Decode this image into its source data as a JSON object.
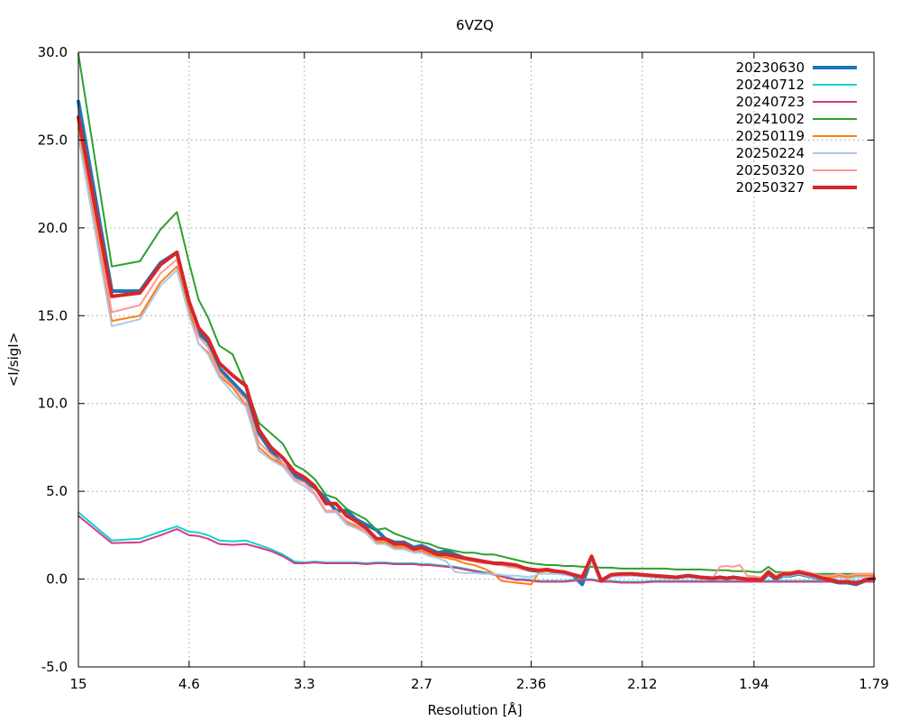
{
  "chart_data": {
    "type": "line",
    "title": "6VZQ",
    "xlabel": "Resolution [Å]",
    "ylabel": "<I/sigI>",
    "x_scale": "1/d^2",
    "xlim": [
      15,
      1.79
    ],
    "ylim": [
      -5,
      30
    ],
    "grid": true,
    "legend_position": "top-right",
    "x_ticks": [
      15,
      4.6,
      3.3,
      2.7,
      2.36,
      2.12,
      1.94,
      1.79
    ],
    "x_tick_labels": [
      "15",
      "4.6",
      "3.3",
      "2.7",
      "2.36",
      "2.12",
      "1.94",
      "1.79"
    ],
    "y_ticks": [
      -5,
      0,
      5,
      10,
      15,
      20,
      25,
      30
    ],
    "y_tick_labels": [
      "-5.0",
      "0.0",
      "5.0",
      "10.0",
      "15.0",
      "20.0",
      "25.0",
      "30.0"
    ],
    "x": [
      15.0,
      7.59,
      5.95,
      5.26,
      4.85,
      4.6,
      4.43,
      4.28,
      4.12,
      3.95,
      3.8,
      3.67,
      3.56,
      3.46,
      3.37,
      3.3,
      3.23,
      3.16,
      3.1,
      3.04,
      2.99,
      2.94,
      2.89,
      2.85,
      2.81,
      2.77,
      2.73,
      2.7,
      2.67,
      2.64,
      2.61,
      2.58,
      2.55,
      2.52,
      2.49,
      2.46,
      2.44,
      2.42,
      2.4,
      2.38,
      2.36,
      2.34,
      2.32,
      2.3,
      2.28,
      2.26,
      2.24,
      2.22,
      2.2,
      2.18,
      2.16,
      2.14,
      2.12,
      2.1,
      2.08,
      2.06,
      2.04,
      2.02,
      2.0,
      1.99,
      1.98,
      1.97,
      1.96,
      1.95,
      1.94,
      1.93,
      1.92,
      1.91,
      1.9,
      1.89,
      1.88,
      1.87,
      1.86,
      1.85,
      1.84,
      1.83,
      1.82,
      1.81,
      1.8,
      1.79
    ],
    "series": [
      {
        "name": "20230630",
        "color": "#1f77b4",
        "width": 4,
        "values": [
          27.2,
          16.4,
          16.4,
          18.0,
          18.6,
          15.5,
          14.0,
          13.5,
          12.0,
          11.2,
          10.4,
          8.3,
          7.3,
          6.5,
          5.9,
          5.6,
          5.2,
          4.6,
          3.9,
          3.9,
          3.4,
          3.1,
          2.8,
          2.3,
          2.1,
          2.1,
          1.8,
          1.9,
          1.7,
          1.5,
          1.6,
          1.4,
          1.2,
          1.1,
          1.0,
          0.9,
          0.85,
          0.8,
          0.75,
          0.6,
          0.5,
          0.45,
          0.5,
          0.4,
          0.35,
          0.2,
          -0.3,
          1.2,
          -0.1,
          0.2,
          0.25,
          0.3,
          0.25,
          0.2,
          0.15,
          0.1,
          0.2,
          0.1,
          0.05,
          0.1,
          0.05,
          0.1,
          0.05,
          0.0,
          -0.05,
          -0.1,
          0.3,
          0.0,
          0.2,
          0.2,
          0.3,
          0.2,
          0.1,
          0.0,
          -0.1,
          -0.2,
          -0.2,
          -0.3,
          -0.1,
          0.0
        ]
      },
      {
        "name": "20240712",
        "color": "#17d0d0",
        "width": 2,
        "values": [
          3.8,
          2.2,
          2.3,
          2.7,
          3.0,
          2.7,
          2.65,
          2.5,
          2.2,
          2.15,
          2.2,
          1.95,
          1.7,
          1.4,
          1.0,
          0.95,
          1.0,
          0.95,
          0.95,
          0.95,
          0.95,
          0.9,
          0.95,
          0.95,
          0.9,
          0.9,
          0.9,
          0.85,
          0.85,
          0.8,
          0.75,
          0.7,
          0.6,
          0.5,
          0.4,
          0.3,
          0.2,
          0.1,
          0.0,
          0.0,
          -0.05,
          -0.1,
          -0.1,
          -0.1,
          -0.1,
          -0.05,
          0.0,
          0.0,
          -0.1,
          -0.1,
          -0.15,
          -0.15,
          -0.15,
          -0.1,
          -0.1,
          -0.1,
          -0.1,
          -0.1,
          -0.1,
          -0.1,
          -0.1,
          -0.1,
          -0.1,
          -0.1,
          -0.1,
          -0.1,
          -0.1,
          -0.1,
          -0.1,
          -0.1,
          -0.1,
          -0.1,
          -0.1,
          -0.1,
          -0.1,
          -0.1,
          -0.1,
          -0.1,
          -0.1,
          -0.1
        ]
      },
      {
        "name": "20240723",
        "color": "#d03c87",
        "width": 2,
        "values": [
          3.6,
          2.05,
          2.1,
          2.5,
          2.85,
          2.5,
          2.45,
          2.3,
          2.0,
          1.95,
          2.0,
          1.8,
          1.6,
          1.3,
          0.9,
          0.9,
          0.95,
          0.9,
          0.9,
          0.9,
          0.9,
          0.85,
          0.9,
          0.9,
          0.85,
          0.85,
          0.85,
          0.8,
          0.8,
          0.75,
          0.7,
          0.65,
          0.55,
          0.45,
          0.35,
          0.25,
          0.15,
          0.05,
          -0.05,
          -0.05,
          -0.1,
          -0.15,
          -0.15,
          -0.15,
          -0.15,
          -0.1,
          -0.05,
          -0.05,
          -0.15,
          -0.15,
          -0.2,
          -0.2,
          -0.2,
          -0.15,
          -0.15,
          -0.15,
          -0.15,
          -0.15,
          -0.15,
          -0.15,
          -0.15,
          -0.15,
          -0.15,
          -0.15,
          -0.15,
          -0.15,
          -0.15,
          -0.15,
          -0.15,
          -0.15,
          -0.15,
          -0.15,
          -0.15,
          -0.15,
          -0.15,
          -0.15,
          -0.15,
          -0.15,
          -0.15,
          -0.15
        ]
      },
      {
        "name": "20241002",
        "color": "#2ca02c",
        "width": 2,
        "values": [
          29.9,
          17.8,
          18.1,
          19.9,
          20.9,
          18.0,
          15.9,
          14.9,
          13.3,
          12.8,
          11.0,
          8.9,
          8.3,
          7.7,
          6.5,
          6.2,
          5.7,
          4.8,
          4.6,
          4.0,
          3.7,
          3.4,
          2.8,
          2.9,
          2.6,
          2.4,
          2.2,
          2.1,
          2.0,
          1.8,
          1.7,
          1.6,
          1.5,
          1.5,
          1.4,
          1.4,
          1.3,
          1.2,
          1.1,
          1.0,
          0.9,
          0.85,
          0.8,
          0.8,
          0.75,
          0.75,
          0.7,
          0.7,
          0.65,
          0.65,
          0.6,
          0.6,
          0.6,
          0.6,
          0.6,
          0.55,
          0.55,
          0.55,
          0.5,
          0.5,
          0.5,
          0.45,
          0.45,
          0.45,
          0.4,
          0.4,
          0.7,
          0.4,
          0.4,
          0.4,
          0.5,
          0.4,
          0.3,
          0.3,
          0.3,
          0.3,
          0.3,
          0.3,
          0.3,
          0.3
        ]
      },
      {
        "name": "20250119",
        "color": "#ff7f0e",
        "width": 2,
        "values": [
          25.7,
          14.7,
          15.0,
          16.9,
          17.8,
          15.2,
          13.4,
          12.9,
          11.6,
          10.9,
          9.9,
          7.5,
          6.9,
          6.5,
          5.6,
          5.3,
          4.8,
          3.8,
          3.8,
          3.2,
          3.0,
          2.6,
          2.1,
          2.1,
          1.8,
          1.8,
          1.5,
          1.6,
          1.4,
          1.3,
          1.2,
          1.1,
          0.9,
          0.8,
          0.6,
          0.3,
          -0.1,
          -0.15,
          -0.2,
          -0.25,
          -0.3,
          0.4,
          0.45,
          0.4,
          0.35,
          0.2,
          0.15,
          1.2,
          -0.1,
          0.2,
          0.2,
          0.25,
          0.2,
          0.15,
          0.1,
          0.1,
          0.15,
          0.1,
          0.05,
          0.1,
          0.05,
          0.1,
          0.05,
          0.0,
          0.0,
          -0.05,
          0.4,
          0.1,
          0.3,
          0.3,
          0.4,
          0.3,
          0.2,
          0.1,
          0.1,
          0.2,
          0.1,
          0.2,
          0.2,
          0.2
        ]
      },
      {
        "name": "20250224",
        "color": "#aec7e8",
        "width": 2,
        "values": [
          25.2,
          14.4,
          14.8,
          16.7,
          17.6,
          15.0,
          13.4,
          12.8,
          11.5,
          10.6,
          9.8,
          7.3,
          6.8,
          6.4,
          5.6,
          5.3,
          4.8,
          3.8,
          3.8,
          3.1,
          2.9,
          2.6,
          2.0,
          2.0,
          1.7,
          1.7,
          1.5,
          1.5,
          1.3,
          1.2,
          1.0,
          0.4,
          0.35,
          0.35,
          0.3,
          0.3,
          0.25,
          0.2,
          0.2,
          0.15,
          0.1,
          0.3,
          0.3,
          0.3,
          0.25,
          0.15,
          0.1,
          1.0,
          -0.15,
          0.15,
          0.15,
          0.2,
          0.15,
          0.1,
          0.05,
          0.05,
          0.1,
          0.05,
          0.0,
          0.05,
          0.0,
          0.05,
          0.0,
          -0.05,
          -0.05,
          -0.1,
          0.3,
          0.0,
          0.2,
          0.2,
          0.3,
          0.2,
          0.1,
          0.0,
          0.0,
          0.1,
          0.0,
          0.1,
          0.1,
          0.1
        ]
      },
      {
        "name": "20250320",
        "color": "#ff9896",
        "width": 2,
        "values": [
          26.0,
          15.2,
          15.6,
          17.4,
          18.2,
          15.6,
          13.8,
          13.2,
          11.8,
          11.0,
          10.2,
          7.8,
          7.1,
          6.6,
          5.7,
          5.5,
          4.9,
          3.9,
          3.9,
          3.3,
          3.1,
          2.7,
          2.2,
          2.2,
          1.9,
          1.9,
          1.6,
          1.7,
          1.5,
          1.4,
          1.3,
          1.2,
          1.1,
          1.0,
          0.9,
          0.9,
          0.8,
          0.7,
          0.65,
          0.55,
          0.5,
          0.5,
          0.55,
          0.45,
          0.4,
          0.3,
          0.2,
          1.1,
          0.0,
          0.3,
          0.3,
          0.35,
          0.3,
          0.25,
          0.2,
          0.15,
          0.2,
          0.15,
          0.1,
          0.7,
          0.75,
          0.7,
          0.8,
          0.2,
          0.15,
          0.1,
          0.5,
          0.2,
          0.4,
          0.4,
          0.5,
          0.4,
          0.3,
          0.2,
          0.2,
          0.3,
          0.2,
          0.3,
          0.3,
          0.3
        ]
      },
      {
        "name": "20250327",
        "color": "#d62728",
        "width": 4,
        "values": [
          26.3,
          16.1,
          16.3,
          17.9,
          18.6,
          15.8,
          14.3,
          13.7,
          12.3,
          11.6,
          11.0,
          8.5,
          7.5,
          6.9,
          6.1,
          5.8,
          5.3,
          4.3,
          4.3,
          3.6,
          3.3,
          2.9,
          2.3,
          2.3,
          2.0,
          2.0,
          1.7,
          1.8,
          1.6,
          1.4,
          1.4,
          1.3,
          1.2,
          1.1,
          1.0,
          0.9,
          0.9,
          0.85,
          0.8,
          0.65,
          0.55,
          0.5,
          0.55,
          0.45,
          0.4,
          0.25,
          0.1,
          1.3,
          -0.1,
          0.25,
          0.3,
          0.3,
          0.25,
          0.2,
          0.15,
          0.1,
          0.2,
          0.1,
          0.05,
          0.1,
          0.05,
          0.1,
          0.05,
          0.0,
          0.0,
          -0.05,
          0.4,
          0.05,
          0.3,
          0.3,
          0.4,
          0.3,
          0.2,
          0.05,
          -0.05,
          -0.15,
          -0.15,
          -0.25,
          -0.05,
          0.05
        ]
      }
    ]
  }
}
